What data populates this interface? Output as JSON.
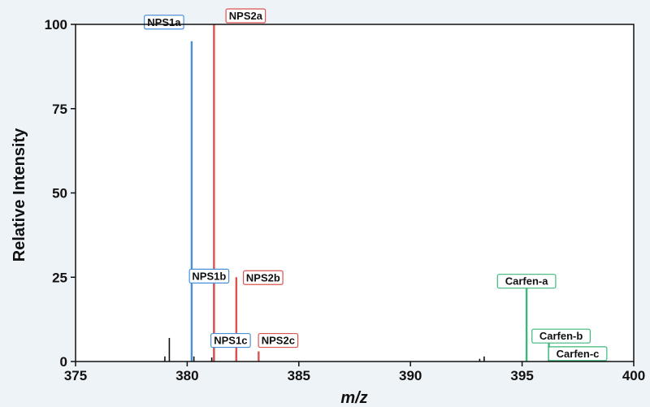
{
  "chart_data": {
    "type": "bar",
    "xlabel": "m/z",
    "ylabel": "Relative Intensity",
    "xlim": [
      375,
      400
    ],
    "ylim": [
      0,
      100
    ],
    "xticks": [
      "375",
      "380",
      "385",
      "390",
      "395",
      "400"
    ],
    "yticks": [
      "0",
      "25",
      "50",
      "75",
      "100"
    ],
    "grid": false,
    "series": [
      {
        "color": "#4a90d9",
        "points": [
          {
            "x": 380.2,
            "y": 95,
            "label": "NPS1a"
          },
          {
            "x": 381.2,
            "y": 24,
            "label": "NPS1b"
          },
          {
            "x": 382.2,
            "y": 3,
            "label": "NPS1c"
          }
        ]
      },
      {
        "color": "#d9534f",
        "points": [
          {
            "x": 381.2,
            "y": 100,
            "label": "NPS2a"
          },
          {
            "x": 382.2,
            "y": 25,
            "label": "NPS2b"
          },
          {
            "x": 383.2,
            "y": 3,
            "label": "NPS2c"
          }
        ]
      },
      {
        "color": "#3cb878",
        "points": [
          {
            "x": 395.2,
            "y": 22,
            "label": "Carfen-a"
          },
          {
            "x": 396.2,
            "y": 5.5,
            "label": "Carfen-b"
          },
          {
            "x": 397.2,
            "y": 1,
            "label": "Carfen-c"
          }
        ]
      },
      {
        "color": "#111111",
        "points": [
          {
            "x": 379.0,
            "y": 1.5
          },
          {
            "x": 379.2,
            "y": 7
          },
          {
            "x": 380.3,
            "y": 1.5
          },
          {
            "x": 381.1,
            "y": 1.2
          },
          {
            "x": 393.1,
            "y": 0.8
          },
          {
            "x": 393.3,
            "y": 1.5
          },
          {
            "x": 397.1,
            "y": 2
          },
          {
            "x": 398.1,
            "y": 0.5
          }
        ]
      }
    ]
  }
}
